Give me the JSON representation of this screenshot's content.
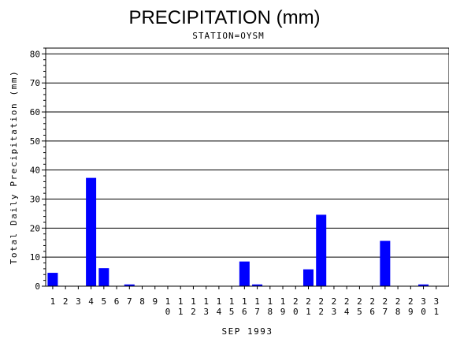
{
  "chart_data": {
    "type": "bar",
    "title": "PRECIPITATION (mm)",
    "subtitle": "STATION=OYSM",
    "xlabel": "SEP 1993",
    "ylabel": "Total Daily Precipitation (mm)",
    "ylim": [
      0,
      82
    ],
    "yticks": [
      "0",
      "10",
      "20",
      "30",
      "40",
      "50",
      "60",
      "70",
      "80"
    ],
    "grid": true,
    "categories": [
      "1",
      "2",
      "3",
      "4",
      "5",
      "6",
      "7",
      "8",
      "9",
      "10",
      "11",
      "12",
      "13",
      "14",
      "15",
      "16",
      "17",
      "18",
      "19",
      "20",
      "21",
      "22",
      "23",
      "24",
      "25",
      "26",
      "27",
      "28",
      "29",
      "30",
      "31"
    ],
    "values": [
      4.6,
      0,
      0,
      37.3,
      6.2,
      0,
      0.6,
      0,
      0,
      0,
      0,
      0,
      0,
      0,
      0,
      8.5,
      0.6,
      0,
      0,
      0,
      5.8,
      24.6,
      0,
      0,
      0,
      0,
      15.6,
      0,
      0,
      0.6,
      0
    ],
    "bar_color": "#0000ff"
  }
}
